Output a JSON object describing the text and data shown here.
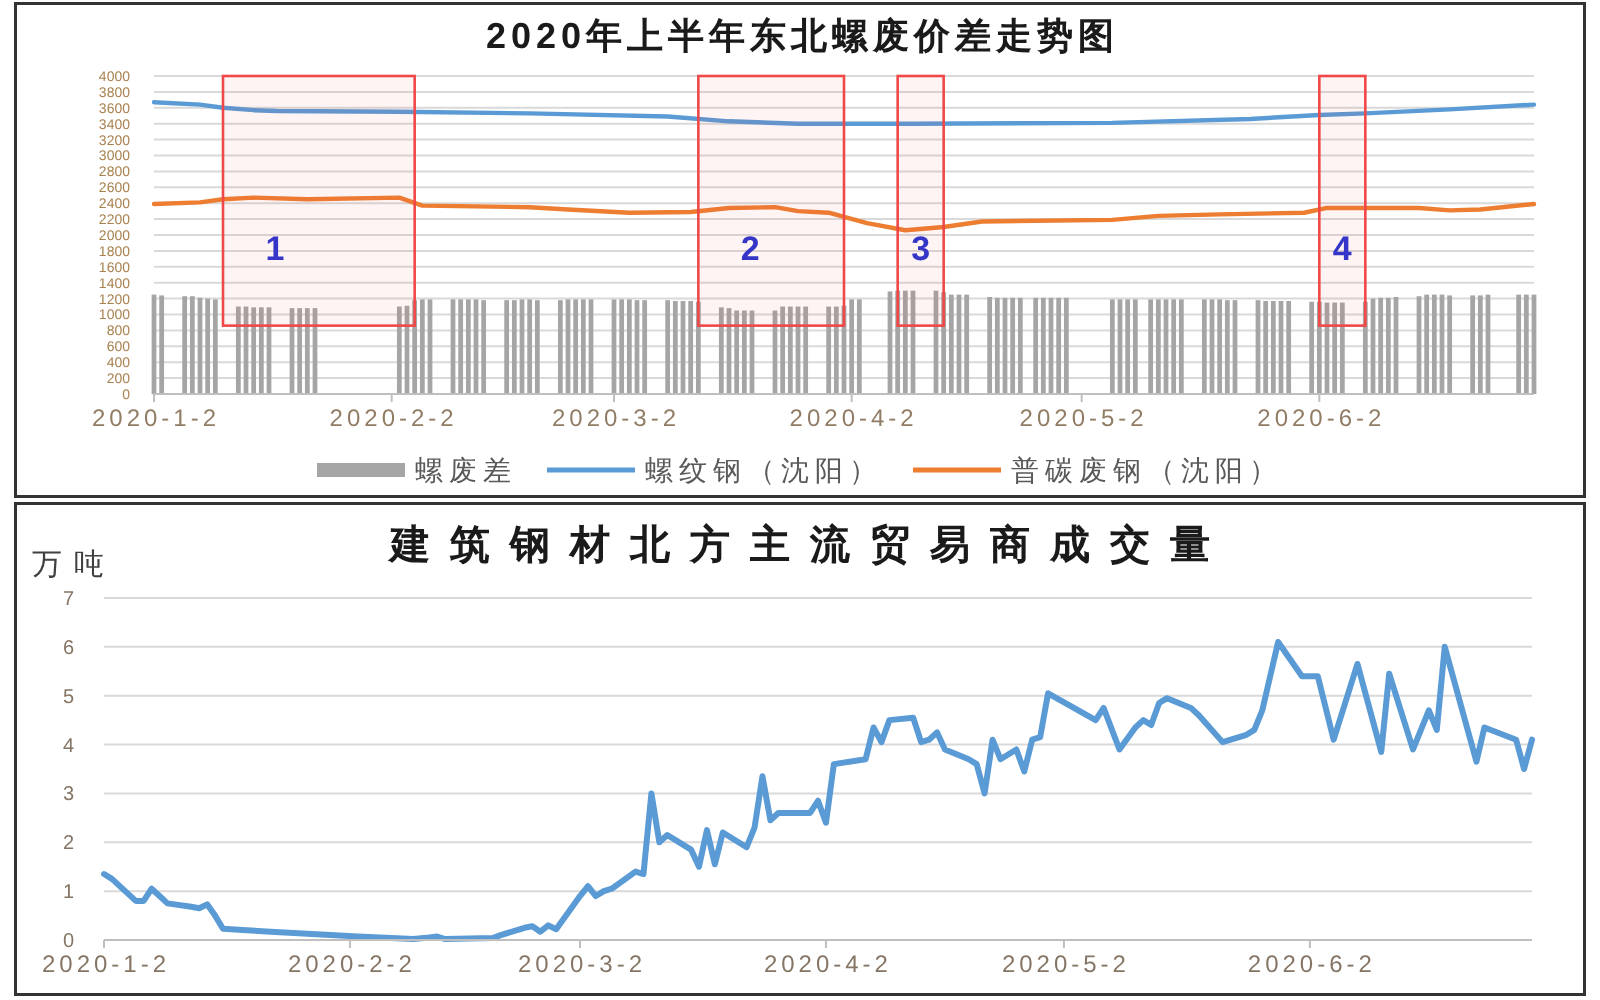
{
  "chart_data": [
    {
      "type": "bar",
      "title": "2020年上半年东北螺废价差走势图",
      "xlim": [
        "2020-01-02",
        "2020-06-30"
      ],
      "xticks": [
        {
          "value": "2020-01-02",
          "label": "2020-1-2"
        },
        {
          "value": "2020-02-02",
          "label": "2020-2-2"
        },
        {
          "value": "2020-03-02",
          "label": "2020-3-2"
        },
        {
          "value": "2020-04-02",
          "label": "2020-4-2"
        },
        {
          "value": "2020-05-02",
          "label": "2020-5-2"
        },
        {
          "value": "2020-06-02",
          "label": "2020-6-2"
        }
      ],
      "ylim": [
        0,
        4000
      ],
      "yticks": [
        0,
        200,
        400,
        600,
        800,
        1000,
        1200,
        1400,
        1600,
        1800,
        2000,
        2200,
        2400,
        2600,
        2800,
        3000,
        3200,
        3400,
        3600,
        3800,
        4000
      ],
      "grid": "y",
      "legend": "bottom",
      "series": [
        {
          "name": "螺废差",
          "color": "#a5a5a5",
          "x": [
            "2020-01-02",
            "2020-01-03",
            "2020-01-06",
            "2020-01-07",
            "2020-01-08",
            "2020-01-09",
            "2020-01-10",
            "2020-01-13",
            "2020-01-14",
            "2020-01-15",
            "2020-01-16",
            "2020-01-17",
            "2020-01-20",
            "2020-01-21",
            "2020-01-22",
            "2020-01-23",
            "2020-02-03",
            "2020-02-04",
            "2020-02-05",
            "2020-02-06",
            "2020-02-07",
            "2020-02-10",
            "2020-02-11",
            "2020-02-12",
            "2020-02-13",
            "2020-02-14",
            "2020-02-17",
            "2020-02-18",
            "2020-02-19",
            "2020-02-20",
            "2020-02-21",
            "2020-02-24",
            "2020-02-25",
            "2020-02-26",
            "2020-02-27",
            "2020-02-28",
            "2020-03-02",
            "2020-03-03",
            "2020-03-04",
            "2020-03-05",
            "2020-03-06",
            "2020-03-09",
            "2020-03-10",
            "2020-03-11",
            "2020-03-12",
            "2020-03-13",
            "2020-03-16",
            "2020-03-17",
            "2020-03-18",
            "2020-03-19",
            "2020-03-20",
            "2020-03-23",
            "2020-03-24",
            "2020-03-25",
            "2020-03-26",
            "2020-03-27",
            "2020-03-30",
            "2020-03-31",
            "2020-04-01",
            "2020-04-02",
            "2020-04-03",
            "2020-04-07",
            "2020-04-08",
            "2020-04-09",
            "2020-04-10",
            "2020-04-13",
            "2020-04-14",
            "2020-04-15",
            "2020-04-16",
            "2020-04-17",
            "2020-04-20",
            "2020-04-21",
            "2020-04-22",
            "2020-04-23",
            "2020-04-24",
            "2020-04-26",
            "2020-04-27",
            "2020-04-28",
            "2020-04-29",
            "2020-04-30",
            "2020-05-06",
            "2020-05-07",
            "2020-05-08",
            "2020-05-09",
            "2020-05-11",
            "2020-05-12",
            "2020-05-13",
            "2020-05-14",
            "2020-05-15",
            "2020-05-18",
            "2020-05-19",
            "2020-05-20",
            "2020-05-21",
            "2020-05-22",
            "2020-05-25",
            "2020-05-26",
            "2020-05-27",
            "2020-05-28",
            "2020-05-29",
            "2020-06-01",
            "2020-06-02",
            "2020-06-03",
            "2020-06-04",
            "2020-06-05",
            "2020-06-08",
            "2020-06-09",
            "2020-06-10",
            "2020-06-11",
            "2020-06-12",
            "2020-06-15",
            "2020-06-16",
            "2020-06-17",
            "2020-06-18",
            "2020-06-19",
            "2020-06-22",
            "2020-06-23",
            "2020-06-24",
            "2020-06-28",
            "2020-06-29",
            "2020-06-30"
          ],
          "values": [
            1250,
            1240,
            1230,
            1230,
            1210,
            1200,
            1190,
            1100,
            1100,
            1090,
            1090,
            1090,
            1080,
            1080,
            1080,
            1080,
            1100,
            1110,
            1180,
            1190,
            1190,
            1190,
            1190,
            1190,
            1190,
            1180,
            1180,
            1180,
            1190,
            1190,
            1180,
            1180,
            1190,
            1190,
            1190,
            1190,
            1190,
            1190,
            1190,
            1180,
            1180,
            1180,
            1170,
            1170,
            1170,
            1160,
            1090,
            1080,
            1050,
            1050,
            1050,
            1050,
            1100,
            1100,
            1100,
            1100,
            1100,
            1100,
            1110,
            1190,
            1190,
            1290,
            1300,
            1300,
            1300,
            1300,
            1280,
            1250,
            1250,
            1250,
            1220,
            1210,
            1210,
            1210,
            1210,
            1210,
            1210,
            1210,
            1210,
            1210,
            1190,
            1190,
            1190,
            1190,
            1190,
            1190,
            1190,
            1190,
            1190,
            1190,
            1190,
            1190,
            1180,
            1180,
            1180,
            1170,
            1170,
            1170,
            1170,
            1160,
            1160,
            1150,
            1150,
            1150,
            1160,
            1200,
            1210,
            1210,
            1220,
            1230,
            1250,
            1250,
            1250,
            1240,
            1240,
            1240,
            1250,
            1250,
            1250,
            1250
          ]
        },
        {
          "name": "螺纹钢（沈阳）",
          "type": "line",
          "color": "#5b9bd5",
          "x": [
            "2020-01-02",
            "2020-01-08",
            "2020-01-11",
            "2020-01-15",
            "2020-01-18",
            "2020-02-03",
            "2020-02-20",
            "2020-03-09",
            "2020-03-17",
            "2020-03-26",
            "2020-04-10",
            "2020-05-06",
            "2020-05-24",
            "2020-06-02",
            "2020-06-08",
            "2020-06-19",
            "2020-06-30"
          ],
          "values": [
            3670,
            3640,
            3600,
            3570,
            3560,
            3550,
            3530,
            3490,
            3430,
            3400,
            3400,
            3410,
            3460,
            3510,
            3530,
            3580,
            3640
          ]
        },
        {
          "name": "普碳废钢（沈阳）",
          "type": "line",
          "color": "#ed7d31",
          "x": [
            "2020-01-02",
            "2020-01-08",
            "2020-01-11",
            "2020-01-15",
            "2020-01-22",
            "2020-02-03",
            "2020-02-06",
            "2020-02-20",
            "2020-02-25",
            "2020-03-04",
            "2020-03-12",
            "2020-03-17",
            "2020-03-23",
            "2020-03-26",
            "2020-03-30",
            "2020-04-04",
            "2020-04-09",
            "2020-04-14",
            "2020-04-19",
            "2020-05-06",
            "2020-05-12",
            "2020-05-20",
            "2020-05-31",
            "2020-06-03",
            "2020-06-15",
            "2020-06-19",
            "2020-06-23",
            "2020-06-30"
          ],
          "values": [
            2390,
            2410,
            2450,
            2470,
            2450,
            2470,
            2370,
            2350,
            2320,
            2280,
            2290,
            2340,
            2350,
            2300,
            2280,
            2150,
            2060,
            2100,
            2170,
            2190,
            2240,
            2260,
            2280,
            2340,
            2340,
            2310,
            2320,
            2390
          ]
        }
      ],
      "bands": [
        {
          "axis": "x",
          "from": "2020-01-11",
          "to": "2020-02-05",
          "label": "1",
          "color": "#f04848"
        },
        {
          "axis": "x",
          "from": "2020-03-13",
          "to": "2020-04-01",
          "label": "2",
          "color": "#f04848"
        },
        {
          "axis": "x",
          "from": "2020-04-08",
          "to": "2020-04-14",
          "label": "3",
          "color": "#f04848"
        },
        {
          "axis": "x",
          "from": "2020-06-02",
          "to": "2020-06-08",
          "label": "4",
          "color": "#f04848"
        }
      ]
    },
    {
      "type": "line",
      "title": "建筑钢材北方主流贸易商成交量",
      "ylabel": "万吨",
      "xlim": [
        "2020-01-02",
        "2020-06-30"
      ],
      "xticks": [
        {
          "value": "2020-01-02",
          "label": "2020-1-2"
        },
        {
          "value": "2020-02-02",
          "label": "2020-2-2"
        },
        {
          "value": "2020-03-02",
          "label": "2020-3-2"
        },
        {
          "value": "2020-04-02",
          "label": "2020-4-2"
        },
        {
          "value": "2020-05-02",
          "label": "2020-5-2"
        },
        {
          "value": "2020-06-02",
          "label": "2020-6-2"
        }
      ],
      "ylim": [
        0,
        7
      ],
      "yticks": [
        0,
        1,
        2,
        3,
        4,
        5,
        6,
        7
      ],
      "grid": "y",
      "color": "#5b9bd5",
      "x": [
        "2020-01-02",
        "2020-01-03",
        "2020-01-06",
        "2020-01-07",
        "2020-01-08",
        "2020-01-09",
        "2020-01-10",
        "2020-01-13",
        "2020-01-14",
        "2020-01-15",
        "2020-01-16",
        "2020-01-17",
        "2020-01-20",
        "2020-01-23",
        "2020-02-03",
        "2020-02-10",
        "2020-02-12",
        "2020-02-13",
        "2020-02-14",
        "2020-02-20",
        "2020-02-21",
        "2020-02-24",
        "2020-02-25",
        "2020-02-26",
        "2020-02-27",
        "2020-02-28",
        "2020-03-02",
        "2020-03-03",
        "2020-03-04",
        "2020-03-05",
        "2020-03-06",
        "2020-03-09",
        "2020-03-10",
        "2020-03-11",
        "2020-03-12",
        "2020-03-13",
        "2020-03-16",
        "2020-03-17",
        "2020-03-18",
        "2020-03-19",
        "2020-03-20",
        "2020-03-23",
        "2020-03-24",
        "2020-03-25",
        "2020-03-26",
        "2020-03-27",
        "2020-03-30",
        "2020-03-31",
        "2020-04-01",
        "2020-04-02",
        "2020-04-03",
        "2020-04-07",
        "2020-04-08",
        "2020-04-09",
        "2020-04-10",
        "2020-04-13",
        "2020-04-14",
        "2020-04-15",
        "2020-04-16",
        "2020-04-17",
        "2020-04-20",
        "2020-04-21",
        "2020-04-22",
        "2020-04-23",
        "2020-04-24",
        "2020-04-26",
        "2020-04-27",
        "2020-04-28",
        "2020-04-29",
        "2020-04-30",
        "2020-05-06",
        "2020-05-07",
        "2020-05-09",
        "2020-05-11",
        "2020-05-12",
        "2020-05-13",
        "2020-05-14",
        "2020-05-15",
        "2020-05-18",
        "2020-05-19",
        "2020-05-22",
        "2020-05-25",
        "2020-05-26",
        "2020-05-27",
        "2020-05-29",
        "2020-06-01",
        "2020-06-03",
        "2020-06-05",
        "2020-06-08",
        "2020-06-11",
        "2020-06-12",
        "2020-06-15",
        "2020-06-17",
        "2020-06-18",
        "2020-06-19",
        "2020-06-23",
        "2020-06-24",
        "2020-06-28",
        "2020-06-29",
        "2020-06-30"
      ],
      "values": [
        1.35,
        1.25,
        0.8,
        0.8,
        1.05,
        0.9,
        0.75,
        0.68,
        0.65,
        0.73,
        0.5,
        0.23,
        0.2,
        0.17,
        0.07,
        0.02,
        0.05,
        0.07,
        0.02,
        0.04,
        0.1,
        0.25,
        0.28,
        0.17,
        0.3,
        0.22,
        0.9,
        1.1,
        0.9,
        1.0,
        1.05,
        1.4,
        1.35,
        3.0,
        2.0,
        2.15,
        1.85,
        1.5,
        2.25,
        1.55,
        2.2,
        1.9,
        2.3,
        3.35,
        2.45,
        2.6,
        2.6,
        2.6,
        2.85,
        2.4,
        3.6,
        3.7,
        4.35,
        4.05,
        4.5,
        4.55,
        4.05,
        4.1,
        4.25,
        3.9,
        3.7,
        3.6,
        3.0,
        4.1,
        3.7,
        3.9,
        3.45,
        4.1,
        4.15,
        5.05,
        4.5,
        4.75,
        3.9,
        4.35,
        4.5,
        4.4,
        4.85,
        4.95,
        4.75,
        4.6,
        4.05,
        4.2,
        4.3,
        4.7,
        6.1,
        5.4,
        5.4,
        4.1,
        5.65,
        3.85,
        5.45,
        3.9,
        4.7,
        4.3,
        6.0,
        3.65,
        4.35,
        4.1,
        3.5,
        4.1
      ]
    }
  ]
}
